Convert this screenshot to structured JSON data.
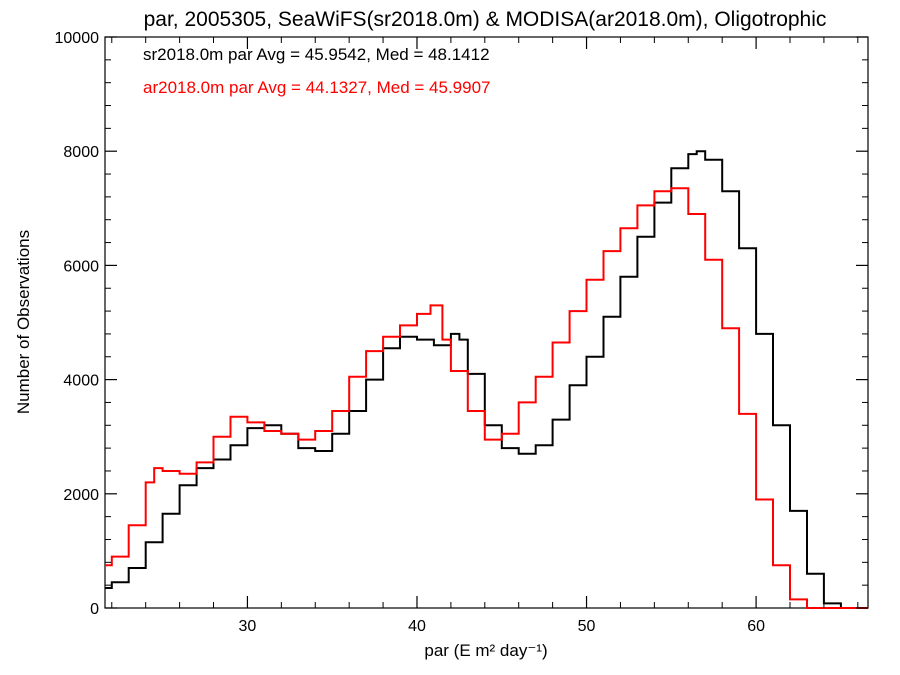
{
  "chart_data": {
    "type": "line",
    "step": true,
    "title": "par, 2005305, SeaWiFS(sr2018.0m) & MODISA(ar2018.0m), Oligotrophic",
    "xlabel": "par (E m² day⁻¹)",
    "ylabel": "Number of Observations",
    "xlim": [
      21.6,
      66.6
    ],
    "ylim": [
      0,
      10000
    ],
    "x_ticks": [
      30,
      40,
      50,
      60
    ],
    "y_ticks": [
      0,
      2000,
      4000,
      6000,
      8000,
      10000
    ],
    "x_tick_labels": [
      "30",
      "40",
      "50",
      "60"
    ],
    "y_tick_labels": [
      "0",
      "2000",
      "4000",
      "6000",
      "8000",
      "10000"
    ],
    "grid": false,
    "annotations": [
      {
        "text": "sr2018.0m par Avg = 45.9542, Med = 48.1412",
        "color": "#000000"
      },
      {
        "text": "ar2018.0m par Avg = 44.1327, Med = 45.9907",
        "color": "#ff0000"
      }
    ],
    "series": [
      {
        "color": "#000000",
        "points": [
          [
            21.6,
            350
          ],
          [
            22,
            450
          ],
          [
            23,
            700
          ],
          [
            24,
            1150
          ],
          [
            25,
            1650
          ],
          [
            26,
            2150
          ],
          [
            27,
            2450
          ],
          [
            28,
            2600
          ],
          [
            29,
            2850
          ],
          [
            30,
            3150
          ],
          [
            31,
            3200
          ],
          [
            32,
            3050
          ],
          [
            33,
            2800
          ],
          [
            34,
            2750
          ],
          [
            35,
            3050
          ],
          [
            36,
            3450
          ],
          [
            37,
            4000
          ],
          [
            38,
            4550
          ],
          [
            39,
            4750
          ],
          [
            40,
            4700
          ],
          [
            41,
            4600
          ],
          [
            42,
            4800
          ],
          [
            42.5,
            4700
          ],
          [
            43,
            4100
          ],
          [
            44,
            3200
          ],
          [
            45,
            2800
          ],
          [
            46,
            2700
          ],
          [
            47,
            2850
          ],
          [
            48,
            3300
          ],
          [
            49,
            3900
          ],
          [
            50,
            4400
          ],
          [
            51,
            5100
          ],
          [
            52,
            5800
          ],
          [
            53,
            6500
          ],
          [
            54,
            7100
          ],
          [
            55,
            7700
          ],
          [
            56,
            7950
          ],
          [
            56.5,
            8000
          ],
          [
            57,
            7850
          ],
          [
            58,
            7300
          ],
          [
            59,
            6300
          ],
          [
            60,
            4800
          ],
          [
            61,
            3200
          ],
          [
            62,
            1700
          ],
          [
            63,
            600
          ],
          [
            64,
            80
          ],
          [
            65,
            0
          ],
          [
            66.6,
            0
          ]
        ]
      },
      {
        "color": "#ff0000",
        "points": [
          [
            21.6,
            750
          ],
          [
            22,
            900
          ],
          [
            23,
            1450
          ],
          [
            24,
            2200
          ],
          [
            24.5,
            2450
          ],
          [
            25,
            2400
          ],
          [
            26,
            2350
          ],
          [
            27,
            2550
          ],
          [
            28,
            3000
          ],
          [
            29,
            3350
          ],
          [
            30,
            3250
          ],
          [
            31,
            3100
          ],
          [
            32,
            3050
          ],
          [
            33,
            2950
          ],
          [
            34,
            3100
          ],
          [
            35,
            3450
          ],
          [
            36,
            4050
          ],
          [
            37,
            4500
          ],
          [
            38,
            4750
          ],
          [
            39,
            4950
          ],
          [
            40,
            5150
          ],
          [
            40.8,
            5300
          ],
          [
            41.5,
            4700
          ],
          [
            42,
            4150
          ],
          [
            43,
            3450
          ],
          [
            44,
            2950
          ],
          [
            45,
            3050
          ],
          [
            46,
            3600
          ],
          [
            47,
            4050
          ],
          [
            48,
            4650
          ],
          [
            49,
            5200
          ],
          [
            50,
            5750
          ],
          [
            51,
            6250
          ],
          [
            52,
            6650
          ],
          [
            53,
            7050
          ],
          [
            54,
            7300
          ],
          [
            55,
            7350
          ],
          [
            56,
            6900
          ],
          [
            57,
            6100
          ],
          [
            58,
            4900
          ],
          [
            59,
            3400
          ],
          [
            60,
            1900
          ],
          [
            61,
            750
          ],
          [
            62,
            150
          ],
          [
            63,
            0
          ],
          [
            66.6,
            0
          ]
        ]
      }
    ]
  }
}
